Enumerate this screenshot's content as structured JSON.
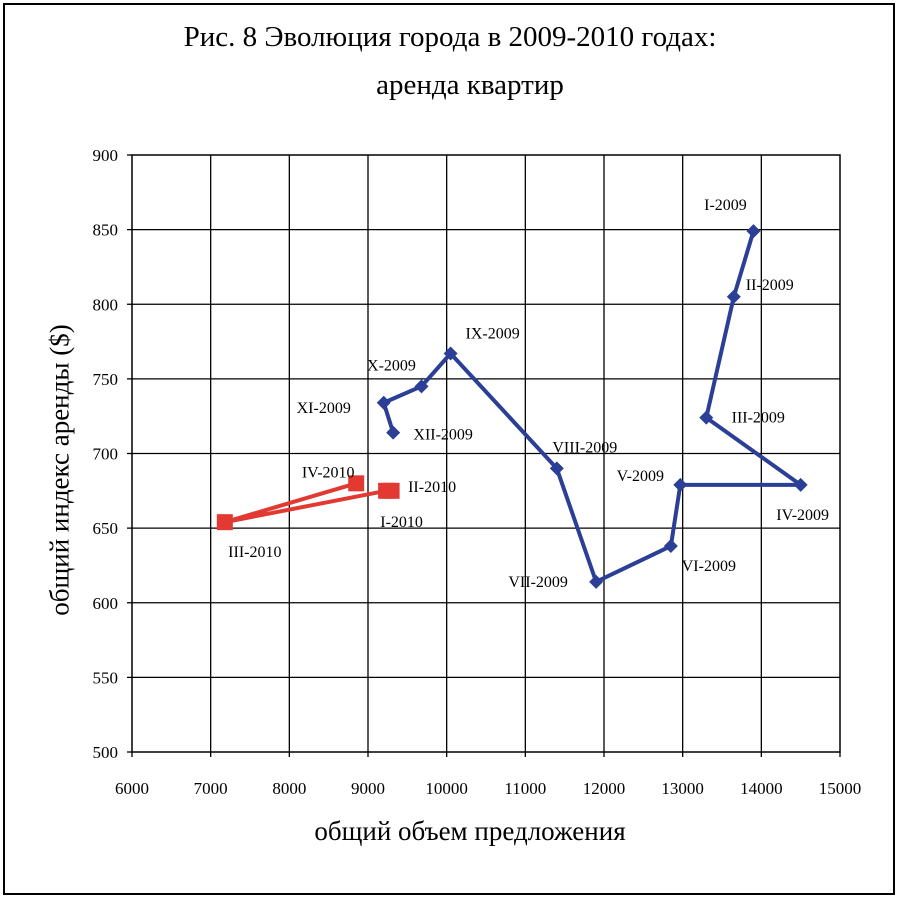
{
  "title_line1": "Рис. 8 Эволюция города в 2009-2010 годах:",
  "title_line2": "аренда квартир",
  "chart_data": {
    "type": "line",
    "xlabel": "общий объем предложения",
    "ylabel": "общий индекс аренды ($)",
    "xlim": [
      6000,
      15000
    ],
    "ylim": [
      500,
      900
    ],
    "xticks": [
      6000,
      7000,
      8000,
      9000,
      10000,
      11000,
      12000,
      13000,
      14000,
      15000
    ],
    "yticks": [
      500,
      550,
      600,
      650,
      700,
      750,
      800,
      850,
      900
    ],
    "grid": true,
    "series": [
      {
        "color": "#2B3F96",
        "marker": "diamond",
        "points": [
          {
            "label": "I-2009",
            "x": 13900,
            "y": 849
          },
          {
            "label": "II-2009",
            "x": 13650,
            "y": 805
          },
          {
            "label": "III-2009",
            "x": 13300,
            "y": 724
          },
          {
            "label": "IV-2009",
            "x": 14500,
            "y": 679
          },
          {
            "label": "V-2009",
            "x": 12970,
            "y": 679
          },
          {
            "label": "VI-2009",
            "x": 12850,
            "y": 638
          },
          {
            "label": "VII-2009",
            "x": 11900,
            "y": 614
          },
          {
            "label": "VIII-2009",
            "x": 11400,
            "y": 690
          },
          {
            "label": "IX-2009",
            "x": 10050,
            "y": 767
          },
          {
            "label": "X-2009",
            "x": 9680,
            "y": 745
          },
          {
            "label": "XI-2009",
            "x": 9200,
            "y": 734
          },
          {
            "label": "XII-2009",
            "x": 9320,
            "y": 714
          }
        ]
      },
      {
        "color": "#E23A32",
        "marker": "square",
        "points": [
          {
            "label": "I-2010",
            "x": 9300,
            "y": 675
          },
          {
            "label": "II-2010",
            "x": 9230,
            "y": 675
          },
          {
            "label": "III-2010",
            "x": 7180,
            "y": 654
          },
          {
            "label": "IV-2010",
            "x": 8850,
            "y": 680
          }
        ]
      }
    ]
  }
}
